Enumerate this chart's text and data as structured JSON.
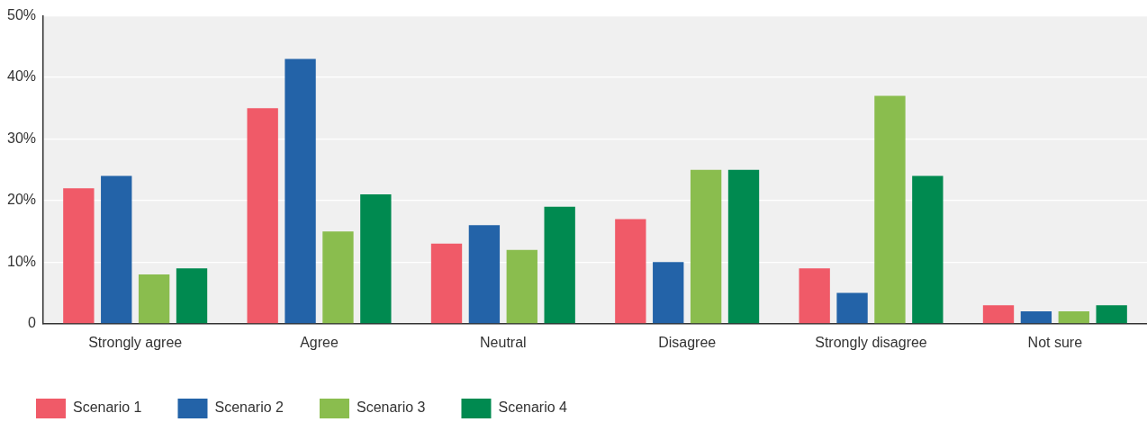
{
  "chart_data": {
    "type": "bar",
    "categories": [
      "Strongly agree",
      "Agree",
      "Neutral",
      "Disagree",
      "Strongly disagree",
      "Not sure"
    ],
    "series": [
      {
        "name": "Scenario 1",
        "color": "#f05a68",
        "values": [
          22,
          35,
          13,
          17,
          9,
          3
        ]
      },
      {
        "name": "Scenario 2",
        "color": "#2363a8",
        "values": [
          24,
          43,
          16,
          10,
          5,
          2
        ]
      },
      {
        "name": "Scenario 3",
        "color": "#8abd4e",
        "values": [
          8,
          15,
          12,
          25,
          37,
          2
        ]
      },
      {
        "name": "Scenario 4",
        "color": "#008a50",
        "values": [
          9,
          21,
          19,
          25,
          24,
          3
        ]
      }
    ],
    "ylim": [
      0,
      50
    ],
    "yticks": [
      {
        "value": 0,
        "label": "0"
      },
      {
        "value": 10,
        "label": "10%"
      },
      {
        "value": 20,
        "label": "20%"
      },
      {
        "value": 30,
        "label": "30%"
      },
      {
        "value": 40,
        "label": "40%"
      },
      {
        "value": 50,
        "label": "50%"
      }
    ],
    "grid": "y",
    "legend": "bottom left"
  }
}
